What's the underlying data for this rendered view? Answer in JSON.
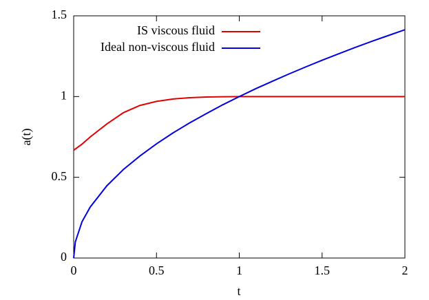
{
  "chart_data": {
    "type": "line",
    "x_label": "t",
    "y_label": "a(t)",
    "x": [
      0,
      0.01,
      0.05,
      0.1,
      0.2,
      0.3,
      0.4,
      0.5,
      0.6,
      0.7,
      0.8,
      0.9,
      1.0,
      1.1,
      1.2,
      1.3,
      1.4,
      1.5,
      1.6,
      1.7,
      1.8,
      1.9,
      2.0
    ],
    "series": [
      {
        "name": "IS viscous fluid",
        "color": "#e00000",
        "values": [
          0.667,
          0.675,
          0.705,
          0.75,
          0.83,
          0.9,
          0.945,
          0.97,
          0.985,
          0.993,
          0.997,
          0.999,
          1,
          1,
          1,
          1,
          1,
          1,
          1,
          1,
          1,
          1,
          1
        ]
      },
      {
        "name": "Ideal non-viscous fluid",
        "color": "#0000e0",
        "values": [
          0,
          0.1,
          0.224,
          0.316,
          0.447,
          0.548,
          0.632,
          0.707,
          0.775,
          0.837,
          0.894,
          0.949,
          1,
          1.049,
          1.095,
          1.14,
          1.183,
          1.225,
          1.265,
          1.304,
          1.342,
          1.378,
          1.414
        ]
      }
    ],
    "xlim": [
      0,
      2
    ],
    "xticks": [
      0,
      0.5,
      1,
      1.5,
      2
    ],
    "ylim": [
      0,
      1.5
    ],
    "yticks": [
      0,
      0.5,
      1,
      1.5
    ],
    "grid": false,
    "legend": "top-left"
  }
}
